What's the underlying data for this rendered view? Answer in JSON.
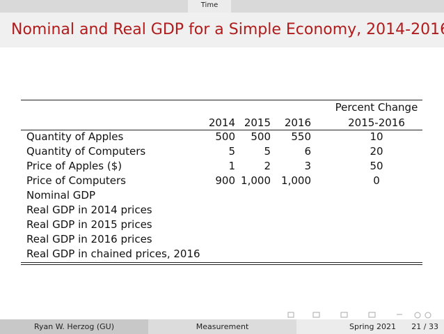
{
  "header": {
    "section": "Time",
    "title": "Nominal and Real GDP for a Simple Economy, 2014-2016"
  },
  "table": {
    "columns": [
      "2014",
      "2015",
      "2016"
    ],
    "change_header": [
      "Percent Change",
      "2015-2016"
    ],
    "rows": [
      {
        "label": "Quantity of Apples",
        "values": [
          "500",
          "500",
          "550"
        ],
        "change": "10"
      },
      {
        "label": "Quantity of Computers",
        "values": [
          "5",
          "5",
          "6"
        ],
        "change": "20"
      },
      {
        "label": "Price of Apples ($)",
        "values": [
          "1",
          "2",
          "3"
        ],
        "change": "50"
      },
      {
        "label": "Price of Computers",
        "values": [
          "900",
          "1,000",
          "1,000"
        ],
        "change": "0"
      },
      {
        "label": "Nominal GDP"
      },
      {
        "label": "Real GDP in 2014 prices"
      },
      {
        "label": "Real GDP in 2015 prices"
      },
      {
        "label": "Real GDP in 2016 prices"
      },
      {
        "label": "Real GDP in chained prices, 2016"
      }
    ]
  },
  "footer": {
    "author": "Ryan W. Herzog  (GU)",
    "subject": "Measurement",
    "date": "Spring 2021",
    "page": "21 / 33"
  }
}
